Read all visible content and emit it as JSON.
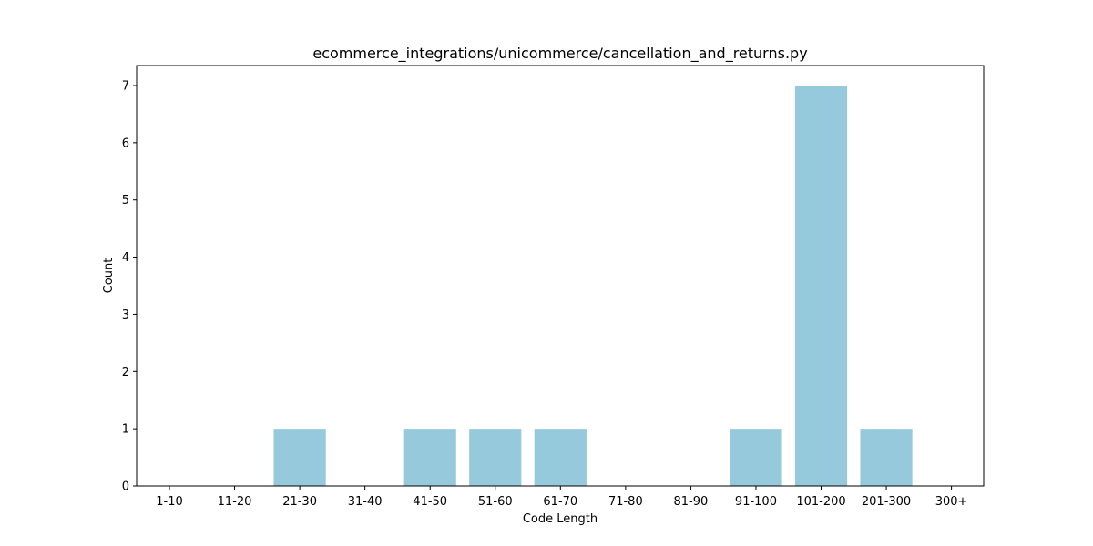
{
  "chart_data": {
    "type": "bar",
    "title": "ecommerce_integrations/unicommerce/cancellation_and_returns.py",
    "xlabel": "Code Length",
    "ylabel": "Count",
    "categories": [
      "1-10",
      "11-20",
      "21-30",
      "31-40",
      "41-50",
      "51-60",
      "61-70",
      "71-80",
      "81-90",
      "91-100",
      "101-200",
      "201-300",
      "300+"
    ],
    "values": [
      0,
      0,
      1,
      0,
      1,
      1,
      1,
      0,
      0,
      1,
      7,
      1,
      0
    ],
    "ylim": [
      0,
      7.35
    ],
    "yticks": [
      "0",
      "1",
      "2",
      "3",
      "4",
      "5",
      "6",
      "7"
    ],
    "bar_color": "#96c9dc",
    "grid": false,
    "legend": "none"
  }
}
